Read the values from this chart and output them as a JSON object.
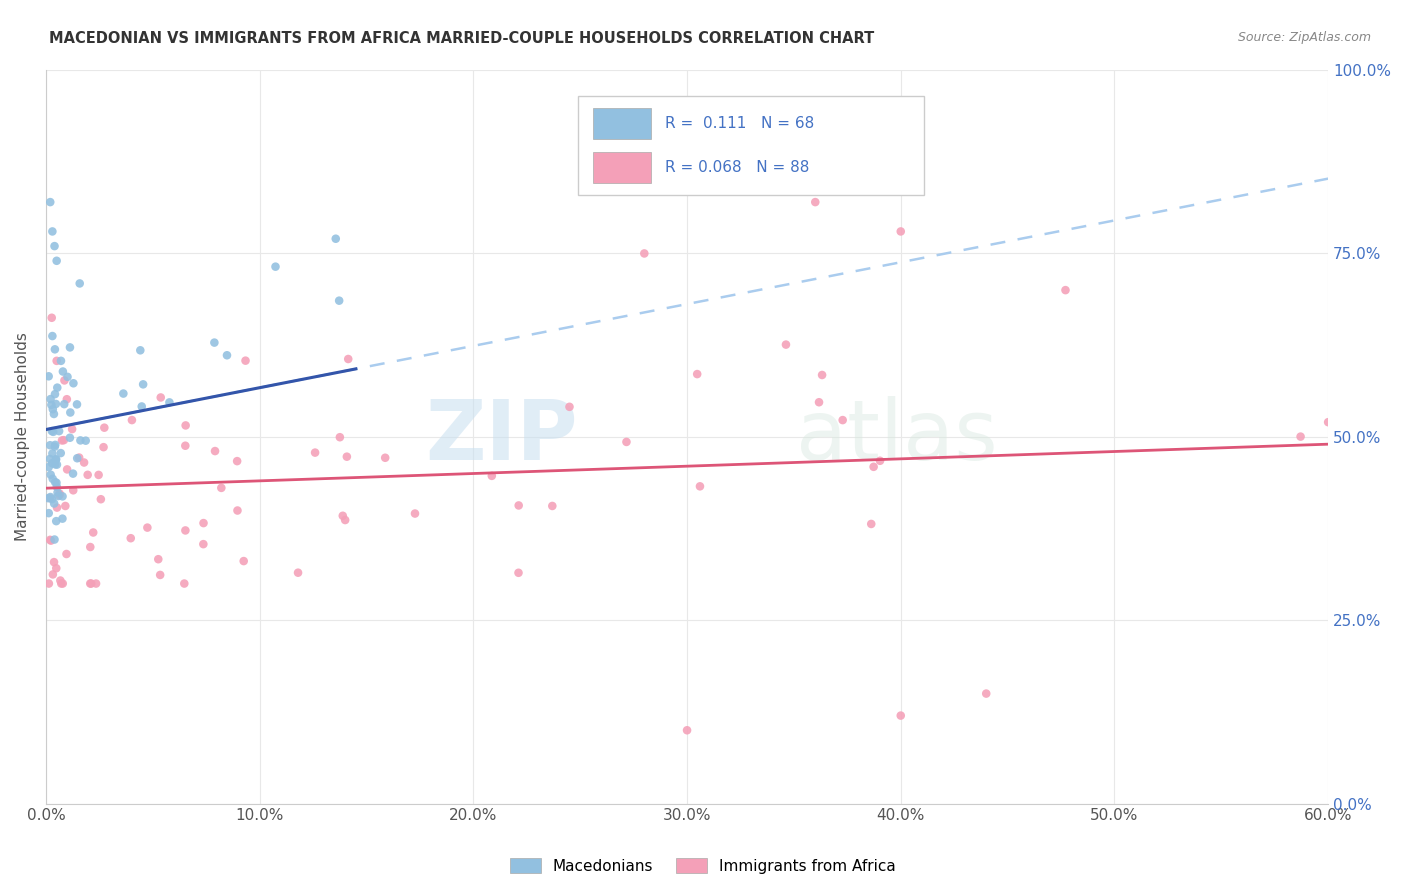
{
  "title": "MACEDONIAN VS IMMIGRANTS FROM AFRICA MARRIED-COUPLE HOUSEHOLDS CORRELATION CHART",
  "source": "Source: ZipAtlas.com",
  "ylabel": "Married-couple Households",
  "xlabel_ticks": [
    "0.0%",
    "10.0%",
    "20.0%",
    "30.0%",
    "40.0%",
    "50.0%",
    "60.0%"
  ],
  "ytick_labels": [
    "0.0%",
    "25.0%",
    "50.0%",
    "75.0%",
    "100.0%"
  ],
  "ytick_values": [
    0.0,
    0.25,
    0.5,
    0.75,
    1.0
  ],
  "xtick_values": [
    0.0,
    0.1,
    0.2,
    0.3,
    0.4,
    0.5,
    0.6
  ],
  "xlim": [
    0.0,
    0.6
  ],
  "ylim": [
    0.0,
    1.0
  ],
  "blue_scatter_color": "#92c0e0",
  "pink_scatter_color": "#f4a0b8",
  "blue_line_color": "#3355aa",
  "pink_line_color": "#dd5577",
  "blue_dash_color": "#aaccee",
  "R_blue": 0.111,
  "N_blue": 68,
  "R_pink": 0.068,
  "N_pink": 88,
  "legend_label_blue": "Macedonians",
  "legend_label_pink": "Immigrants from Africa",
  "watermark_zip": "ZIP",
  "watermark_atlas": "atlas",
  "title_color": "#333333",
  "source_color": "#888888",
  "axis_tick_color": "#4472c4",
  "left_tick_color": "#555555",
  "grid_color": "#e8e8e8"
}
